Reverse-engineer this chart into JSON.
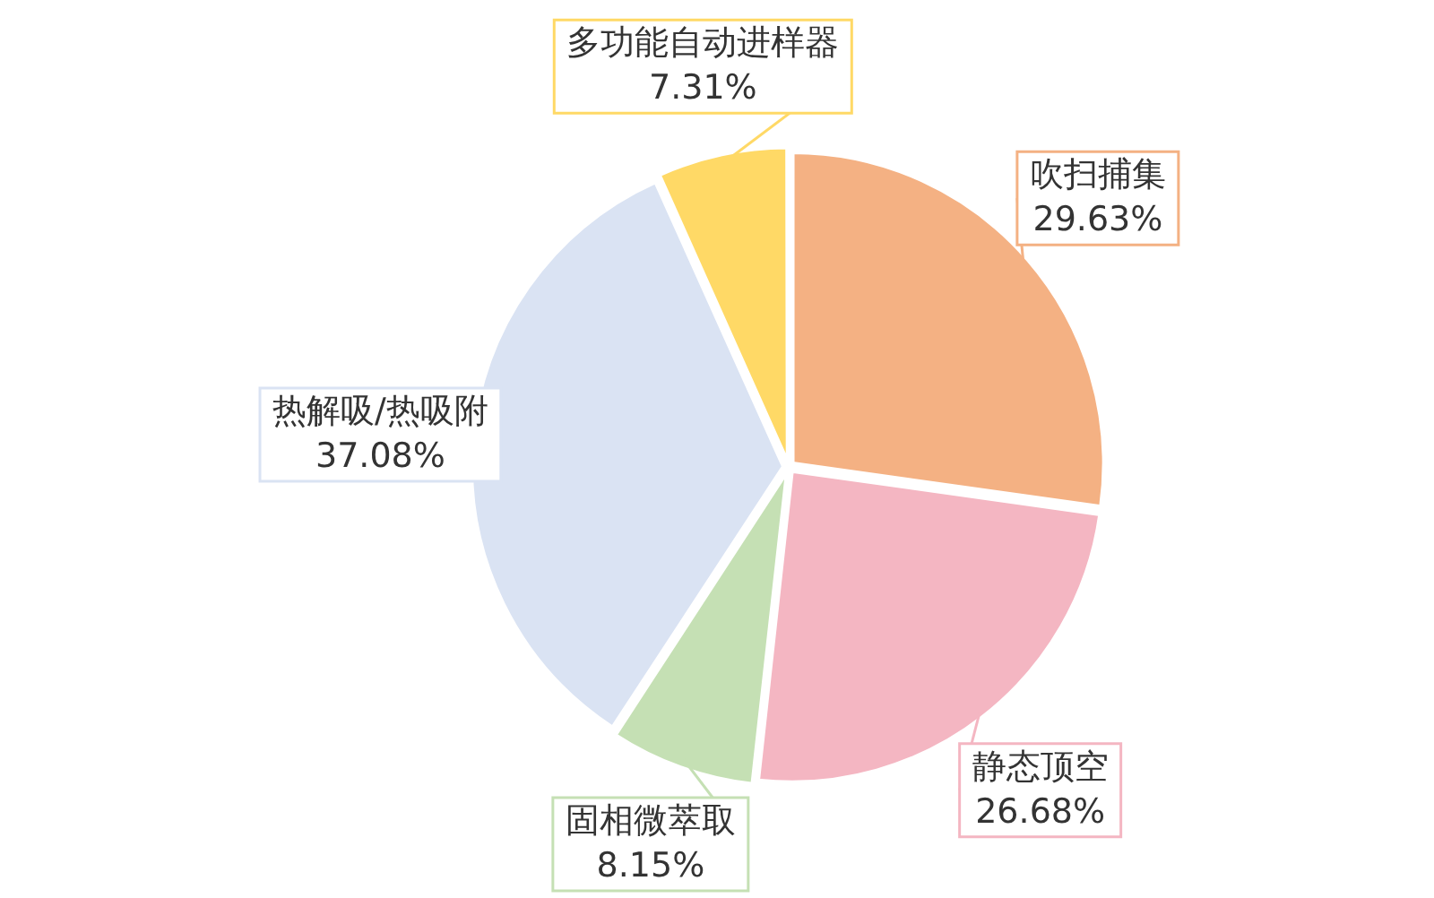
{
  "chart_data": {
    "type": "pie",
    "categories": [
      "吹扫捕集",
      "静态顶空",
      "固相微萃取",
      "热解吸/热吸附",
      "多功能自动进样器"
    ],
    "values": [
      29.63,
      26.68,
      8.15,
      37.08,
      7.31
    ],
    "value_labels": [
      "29.63%",
      "26.68%",
      "8.15%",
      "37.08%",
      "7.31%"
    ],
    "colors": [
      "#f4b183",
      "#f4b6c2",
      "#c5e0b4",
      "#dae3f3",
      "#ffd966"
    ],
    "legend": false
  }
}
